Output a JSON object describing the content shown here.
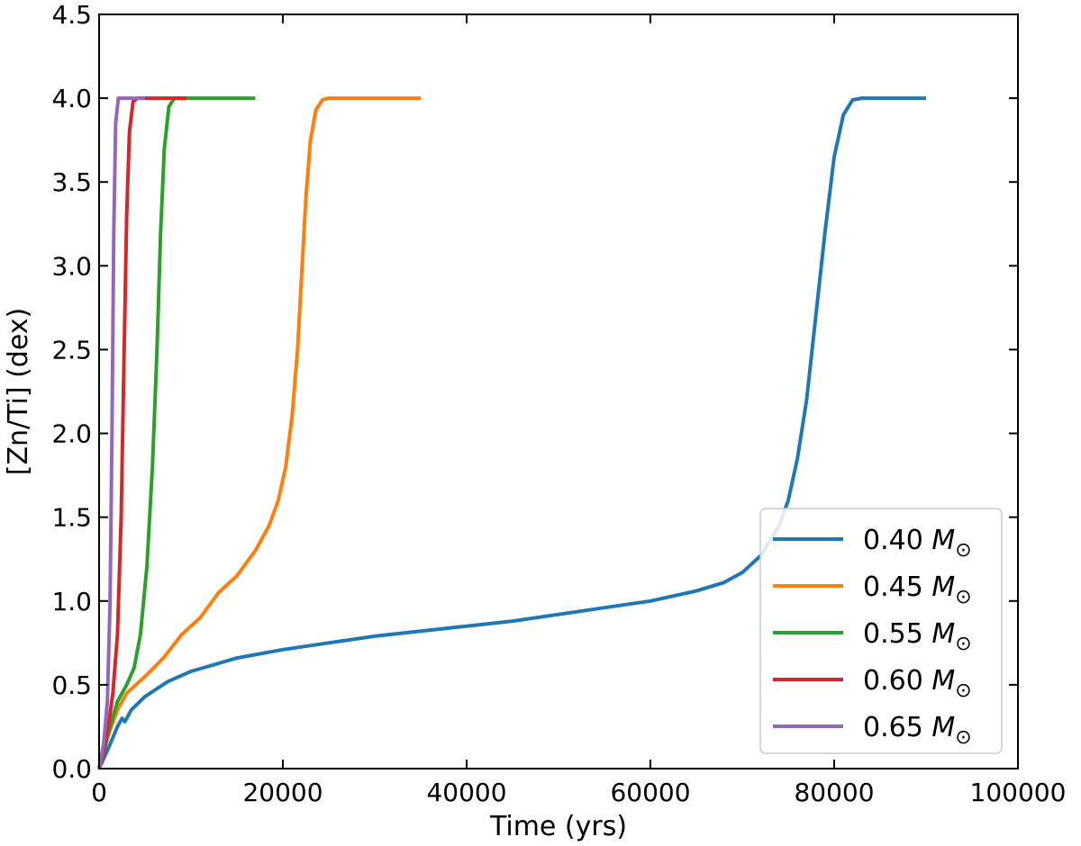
{
  "chart_data": {
    "type": "line",
    "title": "",
    "xlabel": "Time (yrs)",
    "ylabel": "[Zn/Ti] (dex)",
    "xlim": [
      0,
      100000
    ],
    "ylim": [
      0.0,
      4.5
    ],
    "xticks": [
      0,
      20000,
      40000,
      60000,
      80000,
      100000
    ],
    "xtick_labels": [
      "0",
      "20000",
      "40000",
      "60000",
      "80000",
      "100000"
    ],
    "yticks": [
      0.0,
      0.5,
      1.0,
      1.5,
      2.0,
      2.5,
      3.0,
      3.5,
      4.0,
      4.5
    ],
    "ytick_labels": [
      "0.0",
      "0.5",
      "1.0",
      "1.5",
      "2.0",
      "2.5",
      "3.0",
      "3.5",
      "4.0",
      "4.5"
    ],
    "grid": false,
    "tick_direction": "in",
    "legend_position": "lower-right",
    "series": [
      {
        "name": "0.40",
        "unit_symbol": "M",
        "unit_subscript": "⊙",
        "color": "#1f77b4",
        "points": [
          [
            0,
            0.0
          ],
          [
            1000,
            0.12
          ],
          [
            2000,
            0.25
          ],
          [
            2500,
            0.3
          ],
          [
            2800,
            0.28
          ],
          [
            3500,
            0.35
          ],
          [
            5000,
            0.43
          ],
          [
            7500,
            0.52
          ],
          [
            10000,
            0.58
          ],
          [
            15000,
            0.66
          ],
          [
            20000,
            0.71
          ],
          [
            25000,
            0.75
          ],
          [
            30000,
            0.79
          ],
          [
            35000,
            0.82
          ],
          [
            40000,
            0.85
          ],
          [
            45000,
            0.88
          ],
          [
            50000,
            0.92
          ],
          [
            55000,
            0.96
          ],
          [
            60000,
            1.0
          ],
          [
            65000,
            1.06
          ],
          [
            68000,
            1.11
          ],
          [
            70000,
            1.17
          ],
          [
            72000,
            1.27
          ],
          [
            74000,
            1.45
          ],
          [
            75000,
            1.6
          ],
          [
            76000,
            1.85
          ],
          [
            77000,
            2.2
          ],
          [
            78000,
            2.7
          ],
          [
            79000,
            3.2
          ],
          [
            80000,
            3.65
          ],
          [
            81000,
            3.9
          ],
          [
            82000,
            3.99
          ],
          [
            83000,
            4.0
          ],
          [
            90000,
            4.0
          ]
        ]
      },
      {
        "name": "0.45",
        "unit_symbol": "M",
        "unit_subscript": "⊙",
        "color": "#ff7f0e",
        "points": [
          [
            0,
            0.0
          ],
          [
            1000,
            0.2
          ],
          [
            2000,
            0.35
          ],
          [
            3000,
            0.45
          ],
          [
            5000,
            0.55
          ],
          [
            7000,
            0.66
          ],
          [
            9000,
            0.8
          ],
          [
            11000,
            0.9
          ],
          [
            13000,
            1.05
          ],
          [
            15000,
            1.15
          ],
          [
            17000,
            1.3
          ],
          [
            18500,
            1.45
          ],
          [
            19500,
            1.6
          ],
          [
            20300,
            1.8
          ],
          [
            21000,
            2.1
          ],
          [
            21600,
            2.5
          ],
          [
            22100,
            3.0
          ],
          [
            22500,
            3.4
          ],
          [
            23000,
            3.75
          ],
          [
            23600,
            3.93
          ],
          [
            24300,
            3.99
          ],
          [
            25000,
            4.0
          ],
          [
            35000,
            4.0
          ]
        ]
      },
      {
        "name": "0.55",
        "unit_symbol": "M",
        "unit_subscript": "⊙",
        "color": "#2ca02c",
        "points": [
          [
            0,
            0.0
          ],
          [
            500,
            0.1
          ],
          [
            1200,
            0.25
          ],
          [
            2000,
            0.4
          ],
          [
            3000,
            0.5
          ],
          [
            3800,
            0.6
          ],
          [
            4500,
            0.8
          ],
          [
            5200,
            1.2
          ],
          [
            5800,
            1.8
          ],
          [
            6300,
            2.5
          ],
          [
            6700,
            3.2
          ],
          [
            7100,
            3.7
          ],
          [
            7600,
            3.95
          ],
          [
            8200,
            4.0
          ],
          [
            17000,
            4.0
          ]
        ]
      },
      {
        "name": "0.60",
        "unit_symbol": "M",
        "unit_subscript": "⊙",
        "color": "#d62728",
        "points": [
          [
            0,
            0.0
          ],
          [
            500,
            0.1
          ],
          [
            1000,
            0.25
          ],
          [
            1500,
            0.45
          ],
          [
            2000,
            0.8
          ],
          [
            2400,
            1.5
          ],
          [
            2700,
            2.4
          ],
          [
            3000,
            3.3
          ],
          [
            3300,
            3.8
          ],
          [
            3700,
            3.98
          ],
          [
            4200,
            4.0
          ],
          [
            9500,
            4.0
          ]
        ]
      },
      {
        "name": "0.65",
        "unit_symbol": "M",
        "unit_subscript": "⊙",
        "color": "#9467bd",
        "points": [
          [
            0,
            0.0
          ],
          [
            500,
            0.15
          ],
          [
            900,
            0.4
          ],
          [
            1200,
            1.0
          ],
          [
            1400,
            2.0
          ],
          [
            1600,
            3.2
          ],
          [
            1800,
            3.85
          ],
          [
            2100,
            4.0
          ],
          [
            5000,
            4.0
          ]
        ]
      }
    ]
  }
}
